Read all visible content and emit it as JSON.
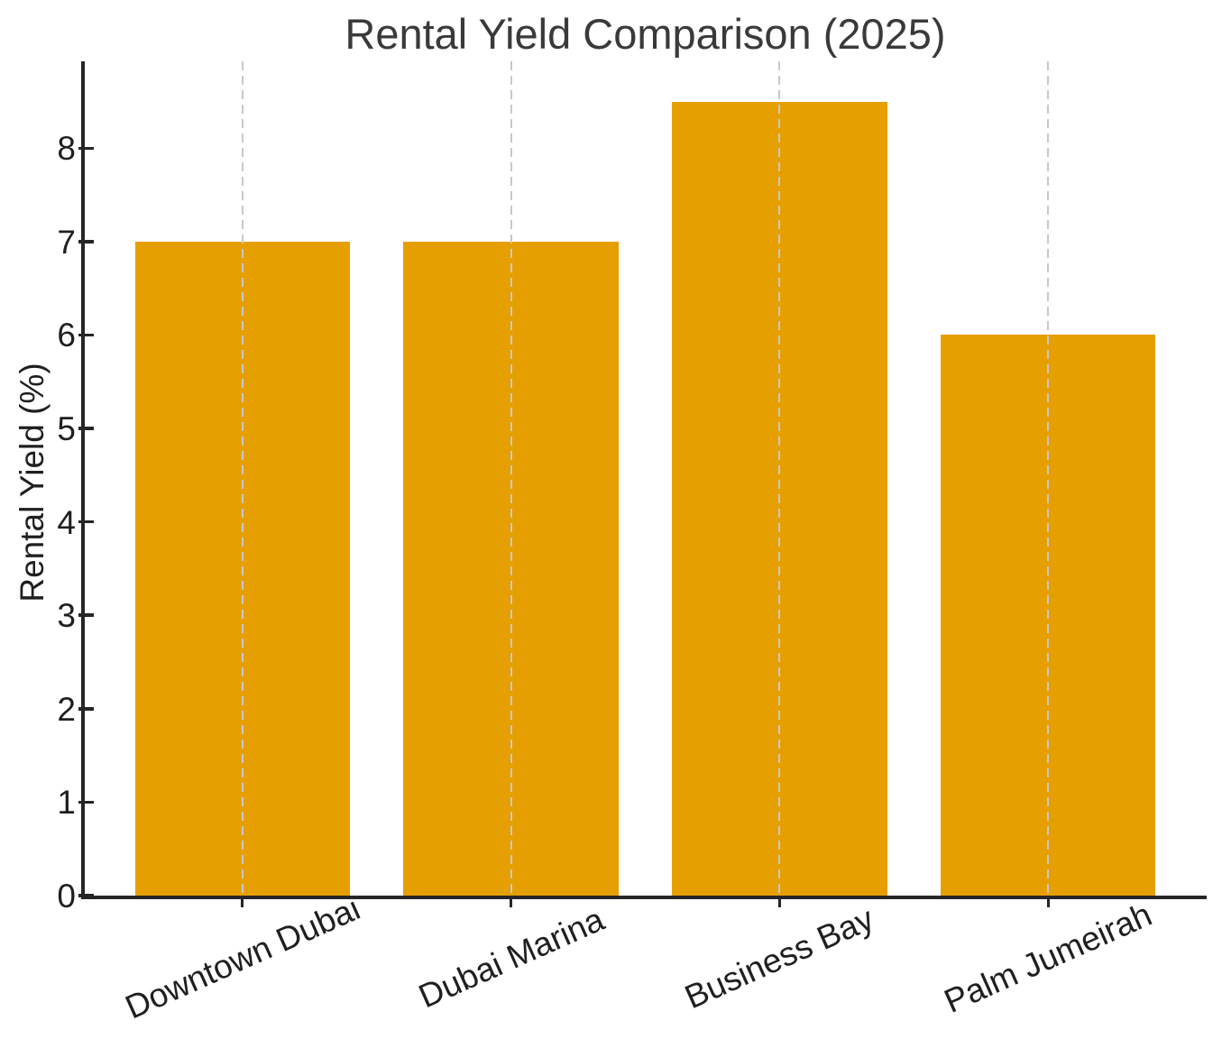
{
  "chart_data": {
    "type": "bar",
    "title": "Rental Yield Comparison (2025)",
    "xlabel": "",
    "ylabel": "Rental Yield (%)",
    "categories": [
      "Downtown Dubai",
      "Dubai Marina",
      "Business Bay",
      "Palm Jumeirah"
    ],
    "values": [
      7.0,
      7.0,
      8.5,
      6.0
    ],
    "ylim": [
      0,
      8.93
    ],
    "yticks": [
      0,
      1,
      2,
      3,
      4,
      5,
      6,
      7,
      8
    ],
    "bar_color": "#E69F00",
    "gridline_color": "#c8c8c8",
    "grid": "vertical-dashed-over-bars",
    "axis_color": "#262626",
    "text_color": "#1f1f1f",
    "title_color": "#3a3a3a",
    "legend": "none"
  }
}
